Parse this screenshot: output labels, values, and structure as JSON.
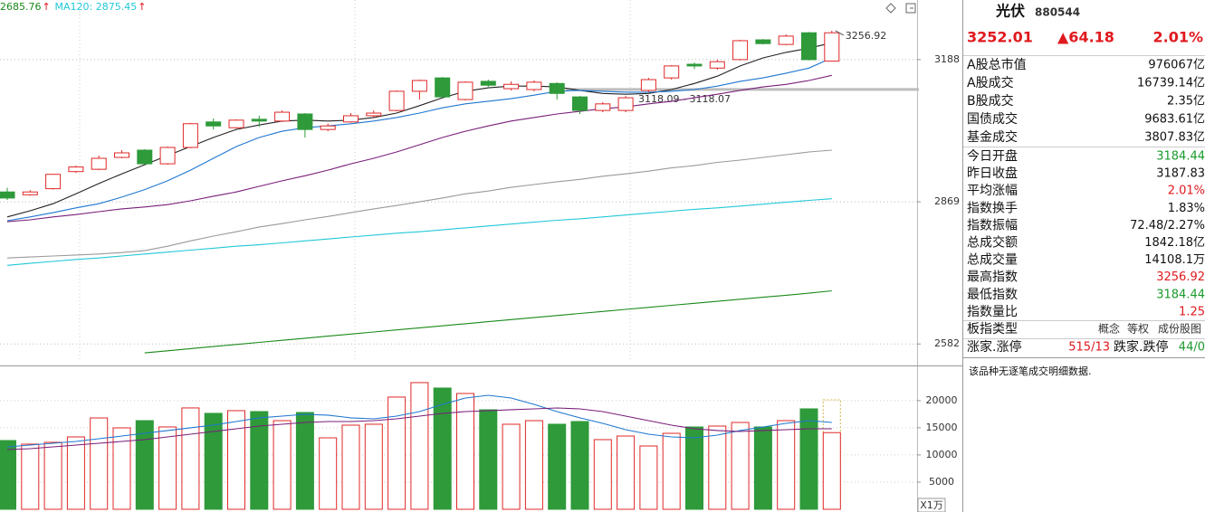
{
  "chart_data": [
    {
      "type": "candlestick",
      "log_scale": true,
      "grid": true,
      "ylim": [
        2548,
        3332
      ],
      "yticks": [
        2582,
        2869,
        3188
      ],
      "up_color": "#e02828",
      "down_color": "#2e9a3a",
      "open": [
        2890,
        2884,
        2897,
        2934,
        2939,
        2965,
        2981,
        2951,
        2987,
        3044,
        3031,
        3050,
        3046,
        3062,
        3027,
        3044,
        3058,
        3070,
        3114,
        3145,
        3095,
        3137,
        3120,
        3118,
        3132,
        3101,
        3070,
        3070,
        3116,
        3145,
        3177,
        3168,
        3188,
        3235,
        3224,
        3252,
        3184.44
      ],
      "high": [
        2899,
        2894,
        2929,
        2947,
        2969,
        2981,
        2983,
        2989,
        3042,
        3052,
        3050,
        3058,
        3070,
        3064,
        3040,
        3064,
        3070,
        3116,
        3141,
        3147,
        3137,
        3141,
        3137,
        3139,
        3135,
        3103,
        3089,
        3103,
        3145,
        3175,
        3181,
        3188,
        3235,
        3237,
        3248,
        3254,
        3256.92
      ],
      "low": [
        2873,
        2882,
        2895,
        2931,
        2937,
        2963,
        2949,
        2949,
        2985,
        3027,
        3029,
        3033,
        3044,
        3009,
        3023,
        3042,
        3054,
        3068,
        3095,
        3099,
        3093,
        3124,
        3116,
        3114,
        3095,
        3062,
        3066,
        3066,
        3112,
        3141,
        3166,
        3164,
        3186,
        3224,
        3222,
        3186,
        3184.44
      ],
      "close": [
        2877,
        2890,
        2928,
        2944,
        2963,
        2975,
        2951,
        2987,
        3040,
        3035,
        3048,
        3046,
        3066,
        3027,
        3035,
        3058,
        3064,
        3114,
        3139,
        3101,
        3135,
        3128,
        3130,
        3135,
        3109,
        3070,
        3085,
        3099,
        3141,
        3173,
        3173,
        3183,
        3233,
        3226,
        3244,
        3187.83,
        3252.01
      ],
      "lines": [
        {
          "color": "#222222",
          "values": [
            2837,
            2850,
            2865,
            2886,
            2908,
            2929,
            2949,
            2969,
            2989,
            3009,
            3027,
            3037,
            3046,
            3048,
            3046,
            3048,
            3054,
            3064,
            3081,
            3099,
            3114,
            3122,
            3126,
            3126,
            3124,
            3116,
            3109,
            3107,
            3109,
            3118,
            3132,
            3149,
            3173,
            3192,
            3205,
            3215,
            3228
          ]
        },
        {
          "color": "#1f77d0",
          "values": [
            2829,
            2837,
            2846,
            2856,
            2865,
            2879,
            2895,
            2914,
            2937,
            2963,
            2989,
            3009,
            3023,
            3031,
            3035,
            3040,
            3046,
            3054,
            3064,
            3076,
            3085,
            3091,
            3097,
            3105,
            3114,
            3116,
            3114,
            3112,
            3112,
            3114,
            3118,
            3126,
            3137,
            3145,
            3156,
            3168,
            3192
          ]
        },
        {
          "color": "#7a1f7a",
          "values": [
            2827,
            2831,
            2837,
            2842,
            2848,
            2854,
            2858,
            2863,
            2871,
            2881,
            2890,
            2902,
            2914,
            2925,
            2937,
            2951,
            2963,
            2977,
            2993,
            3009,
            3023,
            3035,
            3046,
            3054,
            3062,
            3068,
            3074,
            3078,
            3085,
            3091,
            3099,
            3107,
            3116,
            3124,
            3130,
            3139,
            3151
          ]
        },
        {
          "color": "#9a9a9a",
          "values": [
            2752,
            2754,
            2756,
            2758,
            2760,
            2763,
            2767,
            2776,
            2787,
            2797,
            2806,
            2816,
            2823,
            2831,
            2838,
            2846,
            2854,
            2861,
            2869,
            2877,
            2886,
            2892,
            2900,
            2906,
            2912,
            2917,
            2924,
            2929,
            2935,
            2942,
            2947,
            2954,
            2959,
            2965,
            2971,
            2977,
            2981
          ]
        },
        {
          "color": "#22c8d8",
          "values": [
            2737,
            2741,
            2745,
            2749,
            2752,
            2756,
            2760,
            2764,
            2768,
            2772,
            2776,
            2779,
            2783,
            2787,
            2791,
            2795,
            2799,
            2803,
            2806,
            2810,
            2814,
            2818,
            2822,
            2826,
            2830,
            2833,
            2837,
            2841,
            2845,
            2849,
            2853,
            2856,
            2860,
            2864,
            2868,
            2872,
            2875.45
          ]
        },
        {
          "color": "#1a8a1a",
          "values": [
            null,
            null,
            null,
            null,
            null,
            null,
            2565,
            2569,
            2573,
            2577,
            2581,
            2585,
            2589,
            2593,
            2597,
            2601,
            2605,
            2609,
            2613,
            2617,
            2621,
            2625,
            2629,
            2633,
            2637,
            2641,
            2645,
            2649,
            2653,
            2657,
            2661,
            2665,
            2669,
            2673,
            2677,
            2681,
            2685.76
          ]
        }
      ],
      "legend": [
        {
          "text": "2685.76",
          "arrow": "↑",
          "color": "#1a8a1a"
        },
        {
          "text": "MA120: 2875.45",
          "arrow": "↑",
          "color": "#22c8d8"
        }
      ],
      "high_label": "3256.92",
      "level_line": 3118.09,
      "level_label": "3118.09 - 3118.07"
    },
    {
      "type": "volume",
      "grid": true,
      "ylim": [
        0,
        25800
      ],
      "yticks": [
        5000,
        10000,
        15000,
        20000
      ],
      "unit_label": "X1万",
      "values": [
        12650,
        11990,
        12320,
        13320,
        16810,
        14980,
        16310,
        15150,
        18650,
        17650,
        18150,
        17980,
        16310,
        17810,
        13150,
        15480,
        15650,
        20650,
        23310,
        22310,
        21310,
        18310,
        15650,
        16310,
        15650,
        16150,
        12820,
        13480,
        11650,
        13980,
        15150,
        15310,
        15980,
        15150,
        16310,
        18480,
        14108.1
      ],
      "projected_value": 20150,
      "projected_color": "#d4b84a",
      "lines": [
        {
          "color": "#1f77d0",
          "values": [
            11490,
            11820,
            12150,
            12490,
            12990,
            13490,
            13990,
            14490,
            14990,
            15480,
            16150,
            16820,
            17150,
            17480,
            17320,
            16820,
            16650,
            17150,
            17980,
            19310,
            20480,
            20980,
            20480,
            19310,
            17980,
            16820,
            15820,
            14650,
            13820,
            13320,
            13150,
            13650,
            14490,
            15150,
            15820,
            16320,
            15980
          ]
        },
        {
          "color": "#7a1f7a",
          "values": [
            10990,
            11160,
            11490,
            11820,
            12150,
            12490,
            12820,
            13320,
            13820,
            14320,
            14820,
            15320,
            15650,
            15980,
            16150,
            16150,
            16320,
            16650,
            17150,
            17650,
            17980,
            18150,
            18320,
            18480,
            18650,
            18480,
            17980,
            17150,
            16320,
            15480,
            14820,
            14490,
            14320,
            14490,
            14650,
            14820,
            14820
          ]
        }
      ]
    }
  ],
  "info_panel": {
    "name": "光伏",
    "code": "880544",
    "quote": {
      "price": "3252.01",
      "change": "▲64.18",
      "percent": "2.01%",
      "color": "#e0191e"
    },
    "rows": [
      {
        "label": "A股总市值",
        "value": "976067亿",
        "color": "#111111"
      },
      {
        "label": "A股成交",
        "value": "16739.14亿",
        "color": "#111111"
      },
      {
        "label": "B股成交",
        "value": "2.35亿",
        "color": "#111111"
      },
      {
        "label": "国债成交",
        "value": "9683.61亿",
        "color": "#111111"
      },
      {
        "label": "基金成交",
        "value": "3807.83亿",
        "color": "#111111"
      },
      {
        "label": "今日开盘",
        "value": "3184.44",
        "color": "#1a9a2c"
      },
      {
        "label": "昨日收盘",
        "value": "3187.83",
        "color": "#111111"
      },
      {
        "label": "平均涨幅",
        "value": "2.01%",
        "color": "#e0191e"
      },
      {
        "label": "指数换手",
        "value": "1.83%",
        "color": "#111111"
      },
      {
        "label": "指数振幅",
        "value": "72.48/2.27%",
        "color": "#111111"
      },
      {
        "label": "总成交额",
        "value": "1842.18亿",
        "color": "#111111"
      },
      {
        "label": "总成交量",
        "value": "14108.1万",
        "color": "#111111"
      },
      {
        "label": "最高指数",
        "value": "3256.92",
        "color": "#e0191e"
      },
      {
        "label": "最低指数",
        "value": "3184.44",
        "color": "#1a9a2c"
      },
      {
        "label": "指数量比",
        "value": "1.25",
        "color": "#e0191e"
      }
    ],
    "type_label": "板指类型",
    "type_buttons": [
      "概念",
      "等权",
      "成份股图"
    ],
    "breadth": {
      "up_label": "涨家.涨停",
      "up_value": "515/13",
      "down_label": "跌家.跌停",
      "down_value": "44/0"
    },
    "message": "该品种无逐笔成交明细数据."
  }
}
